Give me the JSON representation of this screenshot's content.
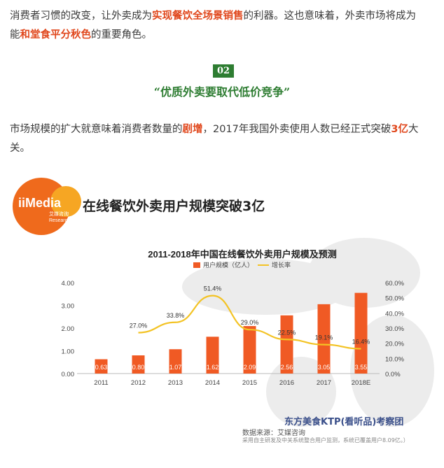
{
  "article": {
    "para1": {
      "t1": "消费者习惯的改变，让外卖成为",
      "h1": "实现餐饮全场景销售",
      "t2": "的利器。这也意味着，外卖市场将成为",
      "t3": "能",
      "h2": "和堂食平分秋色",
      "t4": "的重要角色。"
    },
    "section_number": "02",
    "section_title": "“优质外卖要取代低价竞争”",
    "para2": {
      "t1": "市场规模的扩大就意味着消费者数量的",
      "h1": "剧增",
      "t2": "，2017年我国外卖使用人数已经正式突破",
      "h2": "3亿",
      "t3": "大",
      "t4": "关。"
    }
  },
  "infographic": {
    "logo_text": "iiMedia",
    "logo_sub": "艾媒咨询 Research",
    "headline": "在线餐饮外卖用户规模突破3亿",
    "watermark": "东方美食KTP(看听品)考察团",
    "source": "数据来源：艾媒咨询",
    "source_note": "采用自主研发及中关系统整合用户监测，系统已覆盖用户8.09亿。）"
  },
  "colors": {
    "bar": "#f05a24",
    "line": "#f3c324",
    "accent": "#e0471c",
    "green": "#2e7d32"
  },
  "chart_data": {
    "type": "bar",
    "title": "2011-2018年中国在线餐饮外卖用户规模及预测",
    "categories": [
      "2011",
      "2012",
      "2013",
      "2014",
      "2015",
      "2016",
      "2017",
      "2018E"
    ],
    "series": [
      {
        "name": "用户规模（亿人）",
        "type": "bar",
        "axis": "left",
        "values": [
          0.63,
          0.8,
          1.07,
          1.62,
          2.09,
          2.56,
          3.05,
          3.55
        ],
        "labels": [
          "0.63",
          "0.80",
          "1.07",
          "1.62",
          "2.09",
          "2.56",
          "3.05",
          "3.55"
        ]
      },
      {
        "name": "增长率",
        "type": "line",
        "axis": "right",
        "values": [
          null,
          27.0,
          33.8,
          51.4,
          29.0,
          22.5,
          19.1,
          16.4
        ],
        "labels": [
          "",
          "27.0%",
          "33.8%",
          "51.4%",
          "29.0%",
          "22.5%",
          "19.1%",
          "16.4%"
        ]
      }
    ],
    "ylim": [
      0,
      4
    ],
    "y_ticks": [
      "0.00",
      "1.00",
      "2.00",
      "3.00",
      "4.00"
    ],
    "y2lim": [
      0,
      60
    ],
    "y2_ticks": [
      "0.0%",
      "10.0%",
      "20.0%",
      "30.0%",
      "40.0%",
      "50.0%",
      "60.0%"
    ],
    "legend_position": "top-center",
    "grid": false
  }
}
